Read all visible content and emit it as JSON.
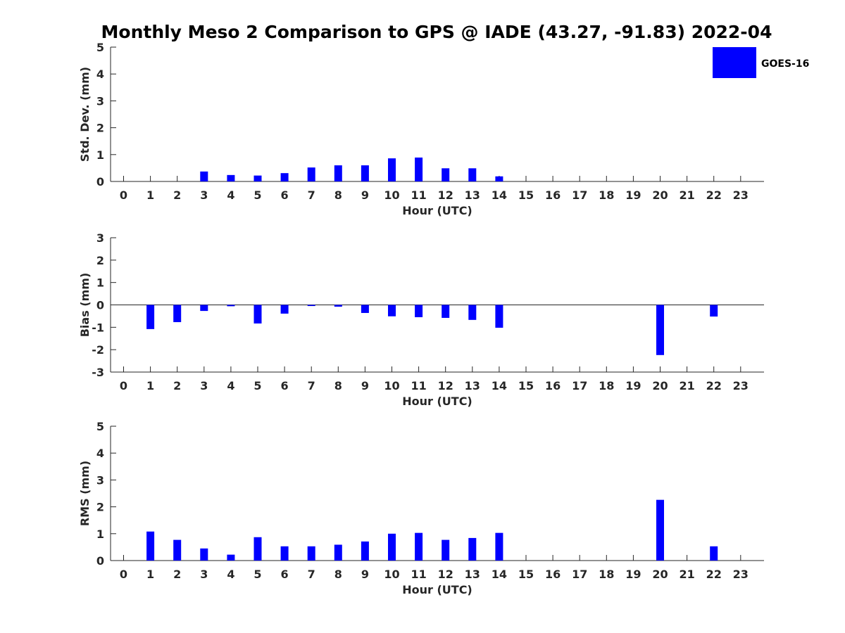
{
  "title": "Monthly Meso 2 Comparison to GPS @ IADE (43.27, -91.83) 2022-04",
  "legend": {
    "label": "GOES-16",
    "color": "#0000ff"
  },
  "chart_data": [
    {
      "type": "bar",
      "xlabel": "Hour (UTC)",
      "ylabel": "Std. Dev. (mm)",
      "ylim": [
        0,
        5
      ],
      "yticks": [
        "0",
        "1",
        "2",
        "3",
        "4",
        "5"
      ],
      "categories": [
        "0",
        "1",
        "2",
        "3",
        "4",
        "5",
        "6",
        "7",
        "8",
        "9",
        "10",
        "11",
        "12",
        "13",
        "14",
        "15",
        "16",
        "17",
        "18",
        "19",
        "20",
        "21",
        "22",
        "23"
      ],
      "series": [
        {
          "name": "GOES-16",
          "color": "#0000ff",
          "values": [
            null,
            null,
            null,
            0.37,
            0.24,
            0.22,
            0.31,
            0.52,
            0.6,
            0.6,
            0.86,
            0.89,
            0.49,
            0.49,
            0.19,
            null,
            null,
            null,
            null,
            null,
            null,
            null,
            null,
            null
          ]
        }
      ]
    },
    {
      "type": "bar",
      "xlabel": "Hour (UTC)",
      "ylabel": "Bias (mm)",
      "ylim": [
        -3,
        3
      ],
      "yticks": [
        "-3",
        "-2",
        "-1",
        "0",
        "1",
        "2",
        "3"
      ],
      "categories": [
        "0",
        "1",
        "2",
        "3",
        "4",
        "5",
        "6",
        "7",
        "8",
        "9",
        "10",
        "11",
        "12",
        "13",
        "14",
        "15",
        "16",
        "17",
        "18",
        "19",
        "20",
        "21",
        "22",
        "23"
      ],
      "series": [
        {
          "name": "GOES-16",
          "color": "#0000ff",
          "values": [
            null,
            -1.08,
            -0.77,
            -0.27,
            -0.06,
            -0.83,
            -0.39,
            -0.05,
            -0.08,
            -0.36,
            -0.51,
            -0.55,
            -0.58,
            -0.67,
            -1.02,
            null,
            null,
            null,
            null,
            null,
            -2.24,
            null,
            -0.52,
            null
          ]
        }
      ]
    },
    {
      "type": "bar",
      "xlabel": "Hour (UTC)",
      "ylabel": "RMS (mm)",
      "ylim": [
        0,
        5
      ],
      "yticks": [
        "0",
        "1",
        "2",
        "3",
        "4",
        "5"
      ],
      "categories": [
        "0",
        "1",
        "2",
        "3",
        "4",
        "5",
        "6",
        "7",
        "8",
        "9",
        "10",
        "11",
        "12",
        "13",
        "14",
        "15",
        "16",
        "17",
        "18",
        "19",
        "20",
        "21",
        "22",
        "23"
      ],
      "series": [
        {
          "name": "GOES-16",
          "color": "#0000ff",
          "values": [
            null,
            1.08,
            0.77,
            0.45,
            0.22,
            0.87,
            0.53,
            0.53,
            0.59,
            0.71,
            1.0,
            1.03,
            0.77,
            0.84,
            1.03,
            null,
            null,
            null,
            null,
            null,
            2.26,
            null,
            0.53,
            null
          ]
        }
      ]
    }
  ]
}
